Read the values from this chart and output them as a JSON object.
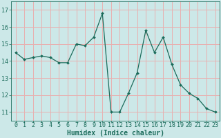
{
  "x": [
    0,
    1,
    2,
    3,
    4,
    5,
    6,
    7,
    8,
    9,
    10,
    11,
    12,
    13,
    14,
    15,
    16,
    17,
    18,
    19,
    20,
    21,
    22,
    23
  ],
  "y": [
    14.5,
    14.1,
    14.2,
    14.3,
    14.2,
    13.9,
    13.9,
    15.0,
    14.9,
    15.4,
    16.8,
    11.0,
    11.0,
    12.1,
    13.3,
    15.8,
    14.5,
    15.4,
    13.8,
    12.6,
    12.1,
    11.8,
    11.2,
    11.0
  ],
  "line_color": "#1a6b5a",
  "marker": "D",
  "marker_size": 2.0,
  "bg_color": "#cce8e8",
  "grid_color": "#e8b0b0",
  "xlabel": "Humidex (Indice chaleur)",
  "ylim": [
    10.5,
    17.5
  ],
  "xlim": [
    -0.5,
    23.5
  ],
  "yticks": [
    11,
    12,
    13,
    14,
    15,
    16,
    17
  ],
  "xticks": [
    0,
    1,
    2,
    3,
    4,
    5,
    6,
    7,
    8,
    9,
    10,
    11,
    12,
    13,
    14,
    15,
    16,
    17,
    18,
    19,
    20,
    21,
    22,
    23
  ],
  "label_color": "#1a6b5a",
  "tick_color": "#1a6b5a",
  "font_size_label": 7,
  "font_size_tick": 6
}
